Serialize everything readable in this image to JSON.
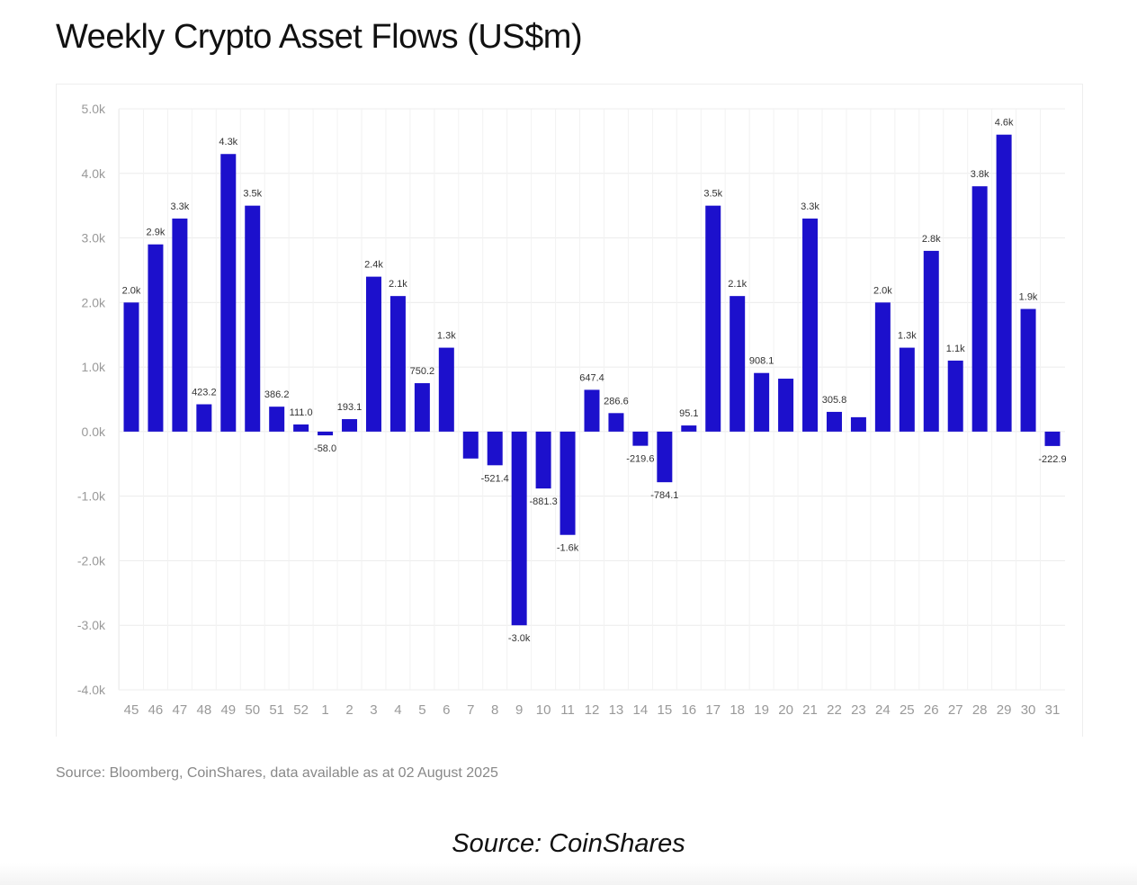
{
  "chart_data": {
    "type": "bar",
    "title": "Weekly Crypto Asset Flows (US$m)",
    "xlabel": "",
    "ylabel": "",
    "ylim": [
      -4000,
      5000
    ],
    "grid": true,
    "y_ticks": [
      "5.0k",
      "4.0k",
      "3.0k",
      "2.0k",
      "1.0k",
      "0.0k",
      "-1.0k",
      "-2.0k",
      "-3.0k",
      "-4.0k"
    ],
    "bar_color": "#1c10cc",
    "categories": [
      "45",
      "46",
      "47",
      "48",
      "49",
      "50",
      "51",
      "52",
      "1",
      "2",
      "3",
      "4",
      "5",
      "6",
      "7",
      "8",
      "9",
      "10",
      "11",
      "12",
      "13",
      "14",
      "15",
      "16",
      "17",
      "18",
      "19",
      "20",
      "21",
      "22",
      "23",
      "24",
      "25",
      "26",
      "27",
      "28",
      "29",
      "30",
      "31"
    ],
    "values": [
      2000,
      2900,
      3300,
      423.2,
      4300,
      3500,
      386.2,
      111.0,
      -58.0,
      193.1,
      2400,
      2100,
      750.2,
      1300,
      -417,
      -521.4,
      -3000,
      -881.3,
      -1600,
      647.4,
      286.6,
      -219.6,
      -784.1,
      95.1,
      3500,
      2100,
      908.1,
      820,
      3300,
      305.8,
      223,
      2000,
      1300,
      2800,
      1100,
      3800,
      4600,
      1900,
      -222.9
    ],
    "data_labels": [
      "2.0k",
      "2.9k",
      "3.3k",
      "423.2",
      "4.3k",
      "3.5k",
      "386.2",
      "111.0",
      "-58.0",
      "193.1",
      "2.4k",
      "2.1k",
      "750.2",
      "1.3k",
      null,
      "-521.4",
      "-3.0k",
      "-881.3",
      "-1.6k",
      "647.4",
      "286.6",
      "-219.6",
      "-784.1",
      "95.1",
      "3.5k",
      "2.1k",
      "908.1",
      null,
      "3.3k",
      "305.8",
      null,
      "2.0k",
      "1.3k",
      "2.8k",
      "1.1k",
      "3.8k",
      "4.6k",
      "1.9k",
      "-222.9"
    ]
  },
  "source_note": "Source: Bloomberg, CoinShares, data available as at 02 August 2025",
  "credit": "Source: CoinShares"
}
